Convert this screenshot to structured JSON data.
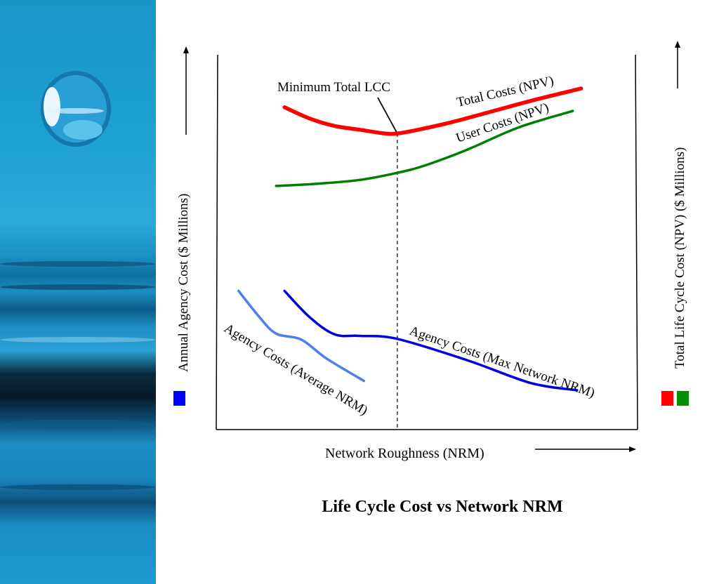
{
  "chart_data": {
    "type": "line",
    "title": "Life Cycle Cost vs Network NRM",
    "xlabel": "Network Roughness (NRM)",
    "ylabel_left": "Annual Agency Cost ($ Millions)",
    "ylabel_right": "Total Life Cycle Cost (NPV) ($ Millions)",
    "xlim": [
      0,
      100
    ],
    "ylim": [
      0,
      100
    ],
    "grid": false,
    "annotation": {
      "label": "Minimum Total LCC",
      "x": 43
    },
    "series": [
      {
        "name": "Total Costs (NPV)",
        "axis": "right",
        "color": "#ff0000",
        "x": [
          16,
          22,
          28,
          34,
          40,
          43,
          48,
          56,
          66,
          76,
          87
        ],
        "y": [
          86,
          83,
          81,
          80,
          79,
          79,
          80,
          82,
          85,
          88,
          91
        ]
      },
      {
        "name": "User Costs (NPV)",
        "axis": "right",
        "color": "#007f00",
        "x": [
          14,
          24,
          34,
          43,
          50,
          60,
          72,
          85
        ],
        "y": [
          65,
          65.6,
          66.6,
          68.5,
          70.6,
          74.8,
          80.6,
          85
        ]
      },
      {
        "name": "Agency Costs (Max Network NRM)",
        "axis": "left",
        "color": "#0000e0",
        "x": [
          16,
          22,
          28,
          34,
          43,
          60,
          75,
          86
        ],
        "y": [
          37,
          30,
          25.4,
          25,
          24.2,
          18.4,
          12.4,
          10.5
        ]
      },
      {
        "name": "Agency Costs (Average NRM)",
        "axis": "left",
        "color": "#4a7ff0",
        "x": [
          5,
          10,
          14,
          20,
          26,
          35
        ],
        "y": [
          37,
          30,
          25.6,
          24,
          19,
          13
        ]
      }
    ],
    "legend_markers": [
      {
        "position": "left",
        "colors": [
          "#0000ff"
        ]
      },
      {
        "position": "right",
        "colors": [
          "#ff0000",
          "#009000"
        ]
      }
    ]
  }
}
